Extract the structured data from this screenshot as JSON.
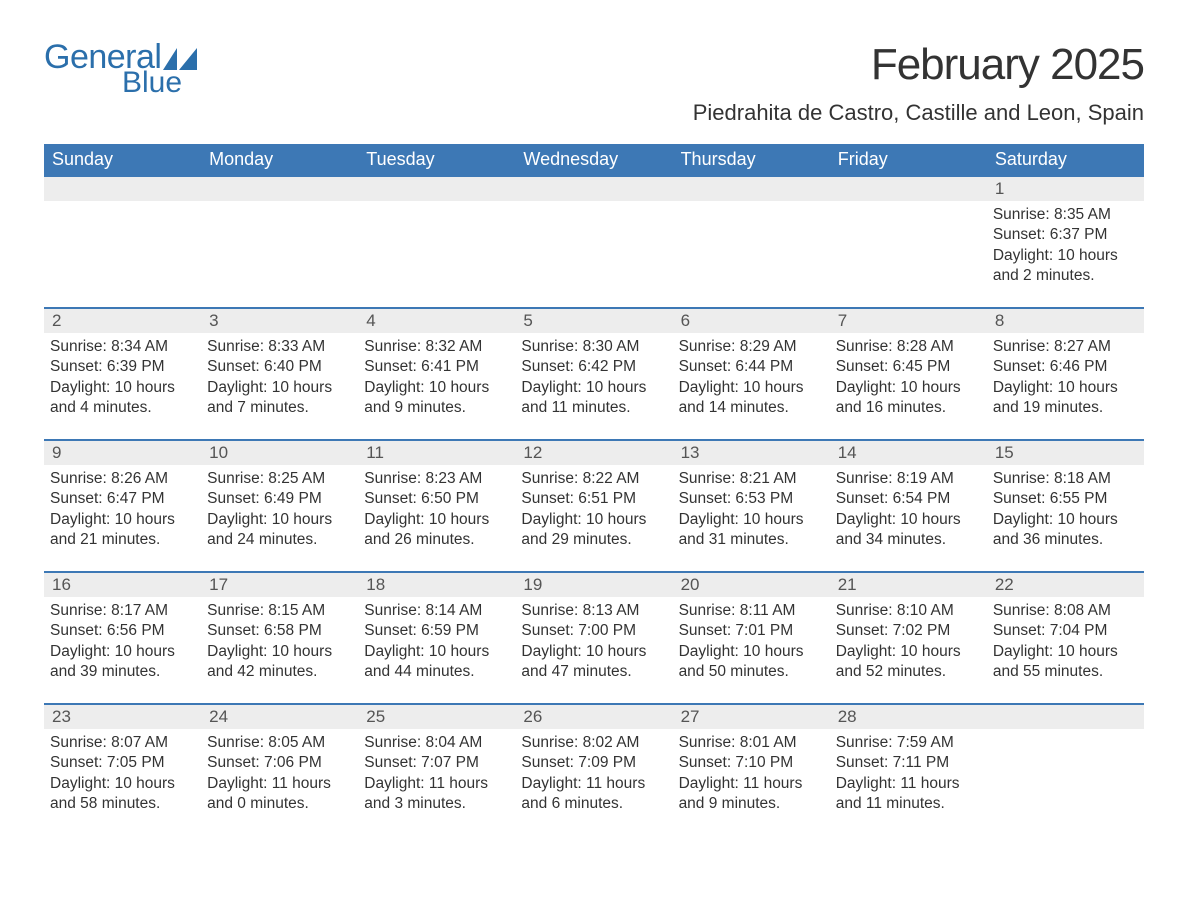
{
  "brand": {
    "general": "General",
    "blue": "Blue",
    "icon_color": "#2b6fab"
  },
  "title": "February 2025",
  "location": "Piedrahita de Castro, Castille and Leon, Spain",
  "colors": {
    "header_bg": "#3d78b5",
    "header_text": "#ffffff",
    "daynum_bg": "#ededed",
    "daynum_text": "#555555",
    "body_text": "#333333",
    "rule": "#3d78b5",
    "page_bg": "#ffffff"
  },
  "day_names": [
    "Sunday",
    "Monday",
    "Tuesday",
    "Wednesday",
    "Thursday",
    "Friday",
    "Saturday"
  ],
  "weeks": [
    [
      null,
      null,
      null,
      null,
      null,
      null,
      {
        "d": "1",
        "sr": "Sunrise: 8:35 AM",
        "ss": "Sunset: 6:37 PM",
        "dl1": "Daylight: 10 hours",
        "dl2": "and 2 minutes."
      }
    ],
    [
      {
        "d": "2",
        "sr": "Sunrise: 8:34 AM",
        "ss": "Sunset: 6:39 PM",
        "dl1": "Daylight: 10 hours",
        "dl2": "and 4 minutes."
      },
      {
        "d": "3",
        "sr": "Sunrise: 8:33 AM",
        "ss": "Sunset: 6:40 PM",
        "dl1": "Daylight: 10 hours",
        "dl2": "and 7 minutes."
      },
      {
        "d": "4",
        "sr": "Sunrise: 8:32 AM",
        "ss": "Sunset: 6:41 PM",
        "dl1": "Daylight: 10 hours",
        "dl2": "and 9 minutes."
      },
      {
        "d": "5",
        "sr": "Sunrise: 8:30 AM",
        "ss": "Sunset: 6:42 PM",
        "dl1": "Daylight: 10 hours",
        "dl2": "and 11 minutes."
      },
      {
        "d": "6",
        "sr": "Sunrise: 8:29 AM",
        "ss": "Sunset: 6:44 PM",
        "dl1": "Daylight: 10 hours",
        "dl2": "and 14 minutes."
      },
      {
        "d": "7",
        "sr": "Sunrise: 8:28 AM",
        "ss": "Sunset: 6:45 PM",
        "dl1": "Daylight: 10 hours",
        "dl2": "and 16 minutes."
      },
      {
        "d": "8",
        "sr": "Sunrise: 8:27 AM",
        "ss": "Sunset: 6:46 PM",
        "dl1": "Daylight: 10 hours",
        "dl2": "and 19 minutes."
      }
    ],
    [
      {
        "d": "9",
        "sr": "Sunrise: 8:26 AM",
        "ss": "Sunset: 6:47 PM",
        "dl1": "Daylight: 10 hours",
        "dl2": "and 21 minutes."
      },
      {
        "d": "10",
        "sr": "Sunrise: 8:25 AM",
        "ss": "Sunset: 6:49 PM",
        "dl1": "Daylight: 10 hours",
        "dl2": "and 24 minutes."
      },
      {
        "d": "11",
        "sr": "Sunrise: 8:23 AM",
        "ss": "Sunset: 6:50 PM",
        "dl1": "Daylight: 10 hours",
        "dl2": "and 26 minutes."
      },
      {
        "d": "12",
        "sr": "Sunrise: 8:22 AM",
        "ss": "Sunset: 6:51 PM",
        "dl1": "Daylight: 10 hours",
        "dl2": "and 29 minutes."
      },
      {
        "d": "13",
        "sr": "Sunrise: 8:21 AM",
        "ss": "Sunset: 6:53 PM",
        "dl1": "Daylight: 10 hours",
        "dl2": "and 31 minutes."
      },
      {
        "d": "14",
        "sr": "Sunrise: 8:19 AM",
        "ss": "Sunset: 6:54 PM",
        "dl1": "Daylight: 10 hours",
        "dl2": "and 34 minutes."
      },
      {
        "d": "15",
        "sr": "Sunrise: 8:18 AM",
        "ss": "Sunset: 6:55 PM",
        "dl1": "Daylight: 10 hours",
        "dl2": "and 36 minutes."
      }
    ],
    [
      {
        "d": "16",
        "sr": "Sunrise: 8:17 AM",
        "ss": "Sunset: 6:56 PM",
        "dl1": "Daylight: 10 hours",
        "dl2": "and 39 minutes."
      },
      {
        "d": "17",
        "sr": "Sunrise: 8:15 AM",
        "ss": "Sunset: 6:58 PM",
        "dl1": "Daylight: 10 hours",
        "dl2": "and 42 minutes."
      },
      {
        "d": "18",
        "sr": "Sunrise: 8:14 AM",
        "ss": "Sunset: 6:59 PM",
        "dl1": "Daylight: 10 hours",
        "dl2": "and 44 minutes."
      },
      {
        "d": "19",
        "sr": "Sunrise: 8:13 AM",
        "ss": "Sunset: 7:00 PM",
        "dl1": "Daylight: 10 hours",
        "dl2": "and 47 minutes."
      },
      {
        "d": "20",
        "sr": "Sunrise: 8:11 AM",
        "ss": "Sunset: 7:01 PM",
        "dl1": "Daylight: 10 hours",
        "dl2": "and 50 minutes."
      },
      {
        "d": "21",
        "sr": "Sunrise: 8:10 AM",
        "ss": "Sunset: 7:02 PM",
        "dl1": "Daylight: 10 hours",
        "dl2": "and 52 minutes."
      },
      {
        "d": "22",
        "sr": "Sunrise: 8:08 AM",
        "ss": "Sunset: 7:04 PM",
        "dl1": "Daylight: 10 hours",
        "dl2": "and 55 minutes."
      }
    ],
    [
      {
        "d": "23",
        "sr": "Sunrise: 8:07 AM",
        "ss": "Sunset: 7:05 PM",
        "dl1": "Daylight: 10 hours",
        "dl2": "and 58 minutes."
      },
      {
        "d": "24",
        "sr": "Sunrise: 8:05 AM",
        "ss": "Sunset: 7:06 PM",
        "dl1": "Daylight: 11 hours",
        "dl2": "and 0 minutes."
      },
      {
        "d": "25",
        "sr": "Sunrise: 8:04 AM",
        "ss": "Sunset: 7:07 PM",
        "dl1": "Daylight: 11 hours",
        "dl2": "and 3 minutes."
      },
      {
        "d": "26",
        "sr": "Sunrise: 8:02 AM",
        "ss": "Sunset: 7:09 PM",
        "dl1": "Daylight: 11 hours",
        "dl2": "and 6 minutes."
      },
      {
        "d": "27",
        "sr": "Sunrise: 8:01 AM",
        "ss": "Sunset: 7:10 PM",
        "dl1": "Daylight: 11 hours",
        "dl2": "and 9 minutes."
      },
      {
        "d": "28",
        "sr": "Sunrise: 7:59 AM",
        "ss": "Sunset: 7:11 PM",
        "dl1": "Daylight: 11 hours",
        "dl2": "and 11 minutes."
      },
      null
    ]
  ]
}
